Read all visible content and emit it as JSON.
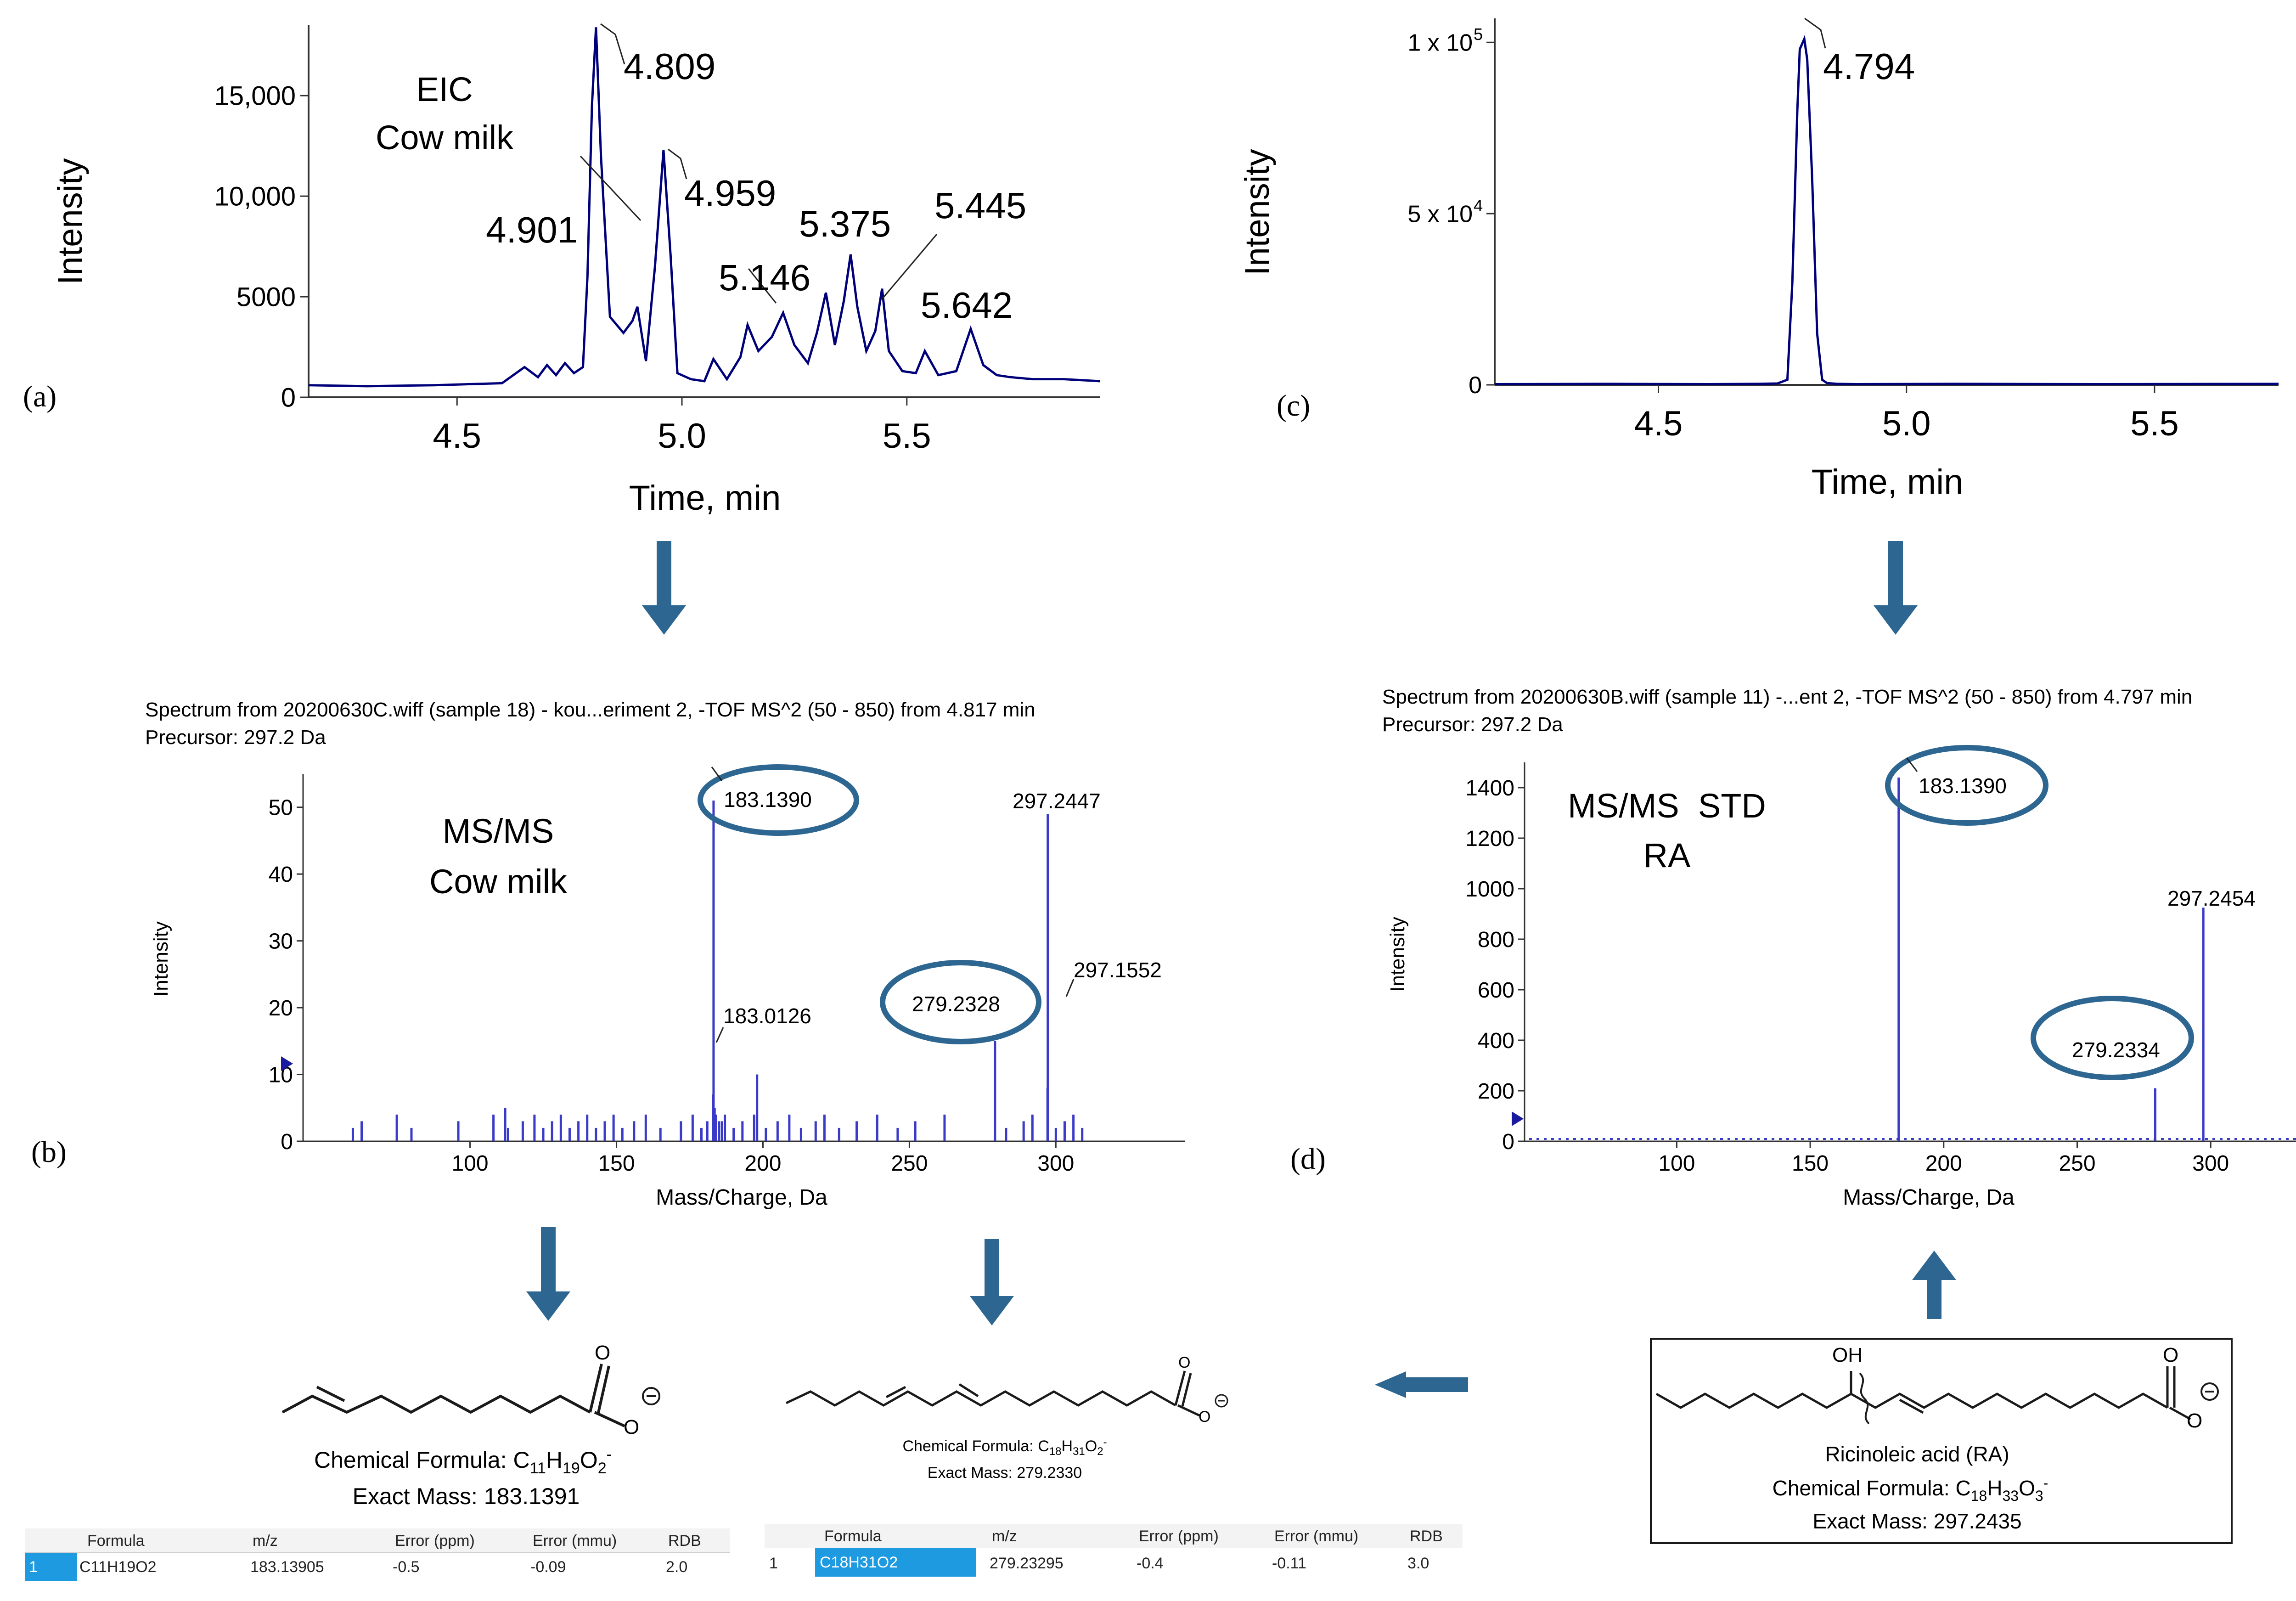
{
  "colors": {
    "trace": "#00007a",
    "ms_line": "#3a3ac8",
    "ms_line_dark": "#1010b8",
    "arrow": "#2d6690",
    "ellipse": "#2d6690"
  },
  "panels": {
    "a": "(a)",
    "b": "(b)",
    "c": "(c)",
    "d": "(d)"
  },
  "chart_data": [
    {
      "id": "a",
      "type": "line",
      "ylabel": "Intensity",
      "xlabel": "Time, min",
      "xlim": [
        4.17,
        5.93
      ],
      "ylim": [
        0,
        18500
      ],
      "xticks": [
        4.5,
        5.0,
        5.5
      ],
      "xtick_labels": [
        "4.5",
        "5.0",
        "5.5"
      ],
      "yticks": [
        0,
        5000,
        10000,
        15000
      ],
      "ytick_labels": [
        "0",
        "5000",
        "10,000",
        "15,000"
      ],
      "annotations": [
        "EIC",
        "Cow milk"
      ],
      "peak_labels": [
        "4.809",
        "4.901",
        "4.959",
        "5.146",
        "5.375",
        "5.445",
        "5.642"
      ],
      "x": [
        4.17,
        4.3,
        4.45,
        4.6,
        4.65,
        4.68,
        4.7,
        4.72,
        4.74,
        4.76,
        4.78,
        4.79,
        4.8,
        4.809,
        4.82,
        4.84,
        4.87,
        4.89,
        4.901,
        4.92,
        4.94,
        4.959,
        4.975,
        4.99,
        5.02,
        5.05,
        5.07,
        5.1,
        5.13,
        5.146,
        5.17,
        5.2,
        5.225,
        5.25,
        5.28,
        5.3,
        5.32,
        5.34,
        5.36,
        5.375,
        5.39,
        5.41,
        5.43,
        5.445,
        5.46,
        5.49,
        5.52,
        5.54,
        5.57,
        5.61,
        5.642,
        5.67,
        5.7,
        5.73,
        5.78,
        5.85,
        5.93
      ],
      "y": [
        600,
        550,
        600,
        700,
        1500,
        1000,
        1600,
        1100,
        1700,
        1200,
        1500,
        6000,
        14500,
        18400,
        12000,
        4000,
        3200,
        3800,
        4500,
        1800,
        6500,
        12300,
        7000,
        1200,
        900,
        800,
        1900,
        900,
        2000,
        3600,
        2300,
        3000,
        4200,
        2600,
        1700,
        3200,
        5200,
        2600,
        4800,
        7100,
        4500,
        2300,
        3300,
        5400,
        2300,
        1300,
        1200,
        2300,
        1100,
        1300,
        3400,
        1600,
        1100,
        1000,
        900,
        900,
        800
      ]
    },
    {
      "id": "c",
      "type": "line",
      "ylabel": "Intensity",
      "xlabel": "Time, min",
      "xlim": [
        4.17,
        5.75
      ],
      "ylim": [
        0,
        107000
      ],
      "xticks": [
        4.5,
        5.0,
        5.5
      ],
      "xtick_labels": [
        "4.5",
        "5.0",
        "5.5"
      ],
      "ytick_labels": [
        "0",
        "5 x 10",
        "1 x 10"
      ],
      "ytick_exps": [
        "",
        "4",
        "5"
      ],
      "yticks": [
        0,
        50000,
        100000
      ],
      "peak_labels": [
        "4.794"
      ],
      "x": [
        4.17,
        4.4,
        4.6,
        4.7,
        4.74,
        4.76,
        4.77,
        4.78,
        4.785,
        4.794,
        4.8,
        4.81,
        4.82,
        4.83,
        4.84,
        4.86,
        4.9,
        5.1,
        5.4,
        5.75
      ],
      "y": [
        200,
        300,
        200,
        300,
        400,
        1500,
        30000,
        80000,
        98000,
        101000,
        95000,
        60000,
        15000,
        1500,
        500,
        300,
        200,
        300,
        200,
        300
      ]
    },
    {
      "id": "b",
      "type": "bar",
      "header": "Spectrum from 20200630C.wiff (sample 18) - kou...eriment 2, -TOF MS^2 (50 - 850) from 4.817 min",
      "precursor": "Precursor: 297.2 Da",
      "ylabel": "Intensity",
      "xlabel": "Mass/Charge, Da",
      "xlim": [
        43,
        344
      ],
      "ylim": [
        0,
        55
      ],
      "xticks": [
        100,
        150,
        200,
        250,
        300
      ],
      "yticks": [
        0,
        10,
        20,
        30,
        40,
        50
      ],
      "annotations": [
        "MS/MS",
        "Cow milk"
      ],
      "peak_labels": [
        "183.1390",
        "297.2447",
        "279.2328",
        "297.1552",
        "183.0126"
      ],
      "x": [
        183.14,
        297.24,
        279.23,
        297.16,
        183.01,
        198,
        112,
        183.5,
        184.0,
        185,
        186
      ],
      "y": [
        51,
        49,
        15,
        8,
        7,
        10,
        5,
        5,
        4,
        3,
        3
      ]
    },
    {
      "id": "d",
      "type": "bar",
      "header": "Spectrum from 20200630B.wiff (sample 11) -...ent 2, -TOF MS^2 (50 - 850) from 4.797 min",
      "precursor": "Precursor: 297.2 Da",
      "ylabel": "Intensity",
      "xlabel": "Mass/Charge, Da",
      "xlim": [
        43,
        344
      ],
      "ylim": [
        0,
        1500
      ],
      "xticks": [
        100,
        150,
        200,
        250,
        300
      ],
      "yticks": [
        0,
        200,
        400,
        600,
        800,
        1000,
        1200,
        1400
      ],
      "annotations": [
        "MS/MS  STD",
        "RA"
      ],
      "peak_labels": [
        "183.1390",
        "297.2454",
        "279.2334"
      ],
      "x": [
        183.14,
        297.245,
        279.233
      ],
      "y": [
        1440,
        925,
        210
      ]
    }
  ],
  "structures": {
    "s1": {
      "formula_prefix": "Chemical Formula: C",
      "formula": [
        "11",
        "H",
        "19",
        "O",
        "2",
        "-"
      ],
      "exact_mass": "Exact Mass: 183.1391",
      "atoms": [
        "O",
        "O"
      ]
    },
    "s2": {
      "formula_prefix": "Chemical Formula: C",
      "formula": [
        "18",
        "H",
        "31",
        "O",
        "2",
        "-"
      ],
      "exact_mass": "Exact Mass: 279.2330",
      "atoms": [
        "O",
        "O"
      ]
    },
    "s3": {
      "name": "Ricinoleic acid (RA)",
      "formula_prefix": "Chemical Formula: C",
      "formula": [
        "18",
        "H",
        "33",
        "O",
        "3",
        "-"
      ],
      "exact_mass": "Exact Mass: 297.2435",
      "atoms": [
        "OH",
        "O",
        "O"
      ]
    }
  },
  "tables": {
    "t1": {
      "headers": [
        "Formula",
        "m/z",
        "Error (ppm)",
        "Error (mmu)",
        "RDB"
      ],
      "row_index": "1",
      "row": [
        "C11H19O2",
        "183.13905",
        "-0.5",
        "-0.09",
        "2.0"
      ]
    },
    "t2": {
      "headers": [
        "Formula",
        "m/z",
        "Error (ppm)",
        "Error (mmu)",
        "RDB"
      ],
      "row_index": "1",
      "row": [
        "C18H31O2",
        "279.23295",
        "-0.4",
        "-0.11",
        "3.0"
      ]
    }
  }
}
